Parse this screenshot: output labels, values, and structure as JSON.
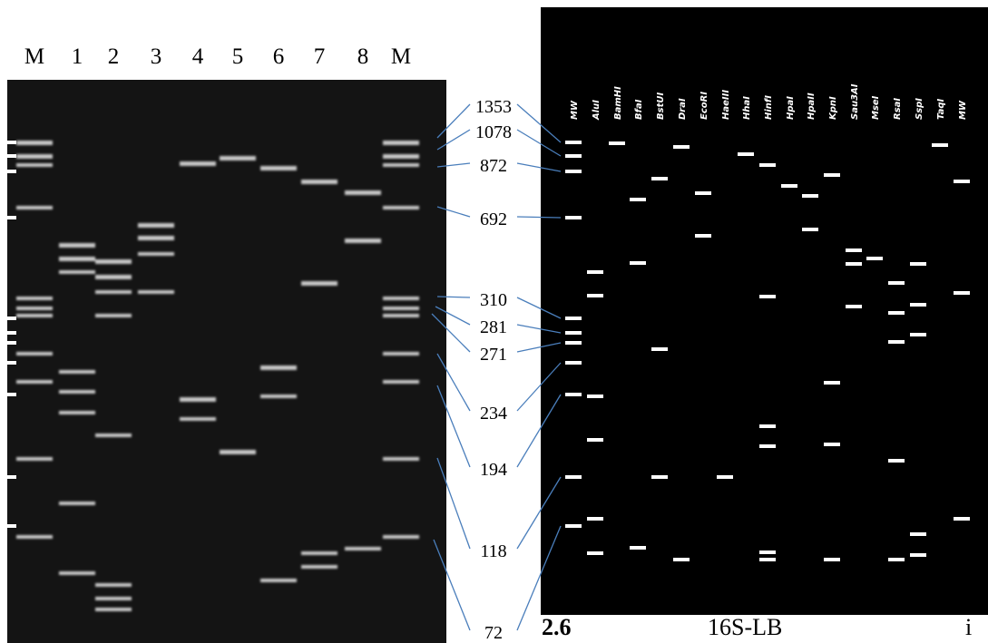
{
  "gel": {
    "lane_labels": [
      "M",
      "1",
      "2",
      "3",
      "4",
      "5",
      "6",
      "7",
      "8",
      "M"
    ]
  },
  "size_labels": [
    "1353",
    "1078",
    "872",
    "692",
    "310",
    "281",
    "271",
    "234",
    "194",
    "118",
    "72"
  ],
  "digest": {
    "lane_labels": [
      "MW",
      "AluI",
      "BamHI",
      "BfaI",
      "BstUI",
      "DraI",
      "EcoRI",
      "HaeIII",
      "HhaI",
      "HinfI",
      "HpaI",
      "HpaII",
      "KpnI",
      "Sau3AI",
      "MseI",
      "RsaI",
      "SspI",
      "TaqI",
      "MW"
    ]
  },
  "caption": {
    "number": "2.6",
    "text": "16S-LB",
    "tail": "i"
  }
}
